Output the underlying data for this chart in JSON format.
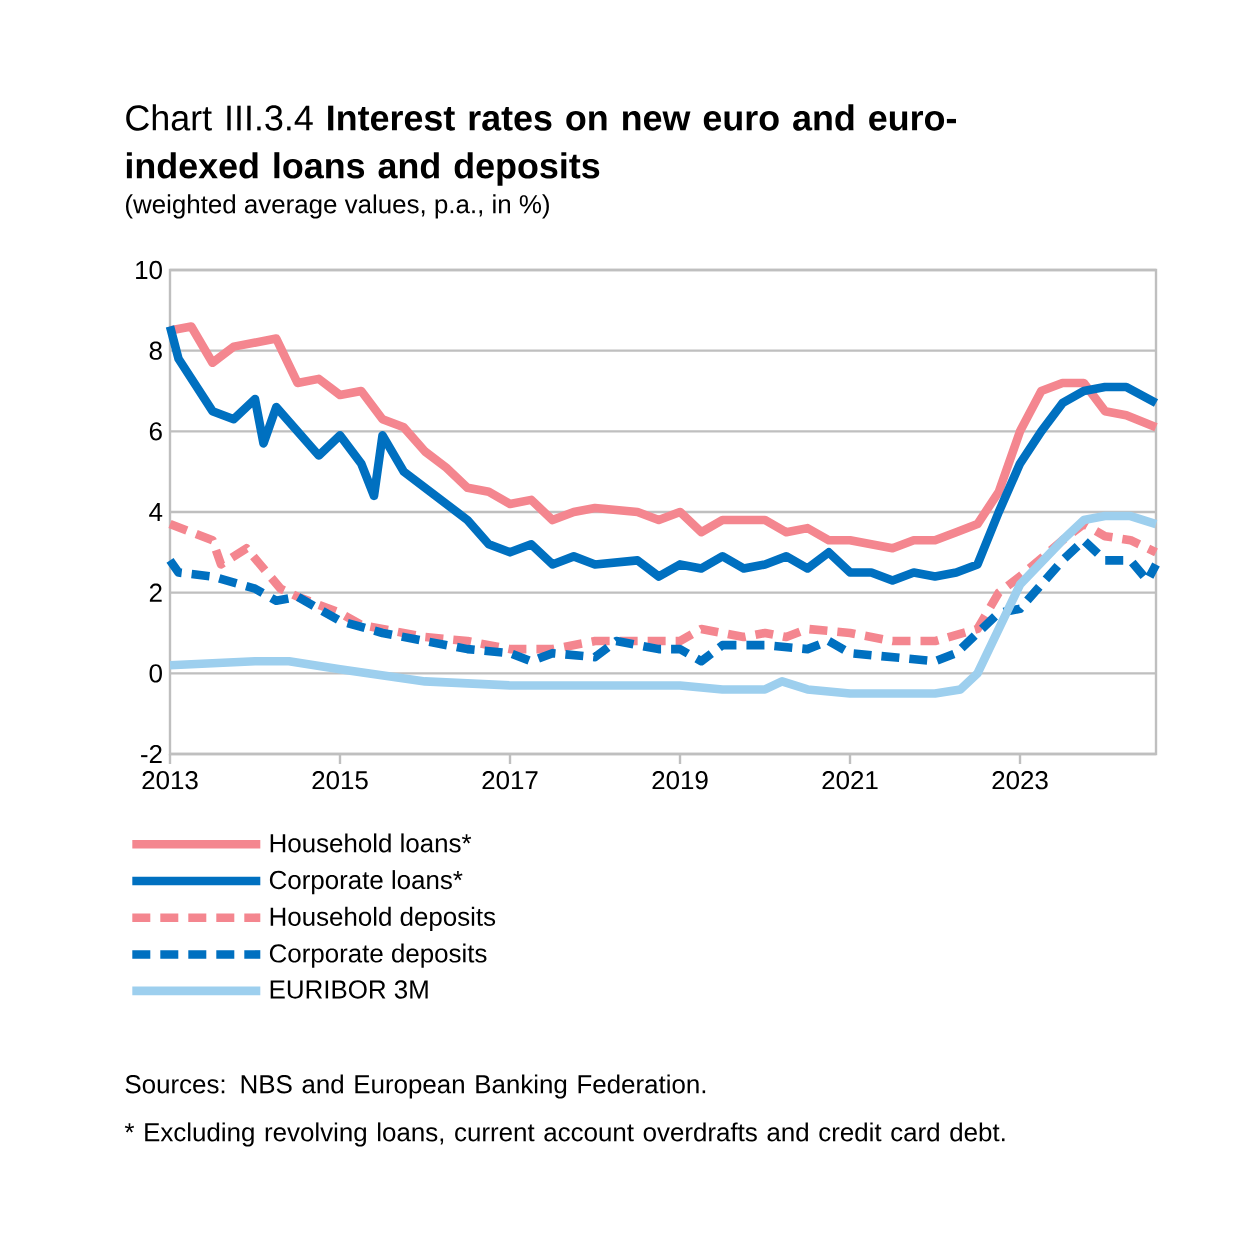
{
  "chart_data": {
    "type": "line",
    "title": "Chart III.3.4 **Interest rates on new euro and euro-indexed loans and deposits**",
    "subtitle": "(weighted average values, p.a., in %)",
    "xlim": [
      2013,
      2024.6
    ],
    "xticks": [
      2013,
      2015,
      2017,
      2019,
      2021,
      2023
    ],
    "ylim": [
      -2,
      10
    ],
    "yticks": [
      -2,
      0,
      2,
      4,
      6,
      8,
      10
    ],
    "grid": "y",
    "legend": "bottom left",
    "series": [
      {
        "name": "Household loans*",
        "color": "#f4868f",
        "line_style": "solid",
        "x": [
          2013,
          2013.25,
          2013.5,
          2013.75,
          2014,
          2014.25,
          2014.5,
          2014.75,
          2015,
          2015.25,
          2015.5,
          2015.75,
          2016,
          2016.25,
          2016.5,
          2016.75,
          2017,
          2017.25,
          2017.5,
          2017.75,
          2018,
          2018.5,
          2018.75,
          2019,
          2019.25,
          2019.5,
          2019.75,
          2020,
          2020.25,
          2020.5,
          2020.75,
          2021,
          2021.25,
          2021.5,
          2021.75,
          2022,
          2022.25,
          2022.5,
          2022.75,
          2023,
          2023.25,
          2023.5,
          2023.75,
          2024,
          2024.25,
          2024.6
        ],
        "values": [
          8.5,
          8.6,
          7.7,
          8.1,
          8.2,
          8.3,
          7.2,
          7.3,
          6.9,
          7.0,
          6.3,
          6.1,
          5.5,
          5.1,
          4.6,
          4.5,
          4.2,
          4.3,
          3.8,
          4.0,
          4.1,
          4.0,
          3.8,
          4.0,
          3.5,
          3.8,
          3.8,
          3.8,
          3.5,
          3.6,
          3.3,
          3.3,
          3.2,
          3.1,
          3.3,
          3.3,
          3.5,
          3.7,
          4.5,
          6.0,
          7.0,
          7.2,
          7.2,
          6.5,
          6.4,
          6.1
        ]
      },
      {
        "name": "Corporate loans*",
        "color": "#0070c0",
        "line_style": "solid",
        "x": [
          2013,
          2013.1,
          2013.5,
          2013.75,
          2014,
          2014.1,
          2014.25,
          2014.5,
          2014.75,
          2015,
          2015.25,
          2015.4,
          2015.5,
          2015.75,
          2016,
          2016.25,
          2016.5,
          2016.75,
          2017,
          2017.25,
          2017.5,
          2017.75,
          2018,
          2018.5,
          2018.75,
          2019,
          2019.25,
          2019.5,
          2019.75,
          2020,
          2020.25,
          2020.5,
          2020.75,
          2021,
          2021.25,
          2021.5,
          2021.75,
          2022,
          2022.25,
          2022.5,
          2022.75,
          2023,
          2023.25,
          2023.5,
          2023.75,
          2024,
          2024.25,
          2024.6
        ],
        "values": [
          8.6,
          7.8,
          6.5,
          6.3,
          6.8,
          5.7,
          6.6,
          6.0,
          5.4,
          5.9,
          5.2,
          4.4,
          5.9,
          5.0,
          4.6,
          4.2,
          3.8,
          3.2,
          3.0,
          3.2,
          2.7,
          2.9,
          2.7,
          2.8,
          2.4,
          2.7,
          2.6,
          2.9,
          2.6,
          2.7,
          2.9,
          2.6,
          3.0,
          2.5,
          2.5,
          2.3,
          2.5,
          2.4,
          2.5,
          2.7,
          4.0,
          5.2,
          6.0,
          6.7,
          7.0,
          7.1,
          7.1,
          6.7
        ]
      },
      {
        "name": "Household deposits",
        "color": "#f4868f",
        "line_style": "dashed",
        "x": [
          2013,
          2013.5,
          2013.6,
          2013.9,
          2014.1,
          2014.3,
          2014.5,
          2015,
          2015.25,
          2015.5,
          2016,
          2016.5,
          2017,
          2017.5,
          2018,
          2018.5,
          2019,
          2019.25,
          2019.75,
          2020,
          2020.25,
          2020.5,
          2021,
          2021.5,
          2022,
          2022.5,
          2022.75,
          2023,
          2023.5,
          2023.75,
          2024,
          2024.3,
          2024.6
        ],
        "values": [
          3.7,
          3.3,
          2.7,
          3.1,
          2.6,
          2.1,
          1.9,
          1.5,
          1.2,
          1.1,
          0.9,
          0.8,
          0.6,
          0.6,
          0.8,
          0.8,
          0.8,
          1.1,
          0.9,
          1.0,
          0.9,
          1.1,
          1.0,
          0.8,
          0.8,
          1.1,
          2.0,
          2.4,
          3.3,
          3.7,
          3.4,
          3.3,
          3.0
        ]
      },
      {
        "name": "Corporate deposits",
        "color": "#0070c0",
        "line_style": "dashed",
        "x": [
          2013,
          2013.1,
          2013.5,
          2014,
          2014.25,
          2014.5,
          2015,
          2015.5,
          2016,
          2016.5,
          2017,
          2017.25,
          2017.5,
          2018,
          2018.25,
          2018.75,
          2019,
          2019.25,
          2019.5,
          2020,
          2020.5,
          2020.75,
          2021,
          2021.5,
          2022,
          2022.25,
          2022.75,
          2023,
          2023.25,
          2023.5,
          2023.75,
          2024,
          2024.3,
          2024.5,
          2024.6
        ],
        "values": [
          2.8,
          2.5,
          2.4,
          2.1,
          1.8,
          1.9,
          1.3,
          1.0,
          0.8,
          0.6,
          0.5,
          0.3,
          0.5,
          0.4,
          0.8,
          0.6,
          0.6,
          0.3,
          0.7,
          0.7,
          0.6,
          0.8,
          0.5,
          0.4,
          0.3,
          0.5,
          1.5,
          1.6,
          2.2,
          2.8,
          3.3,
          2.8,
          2.8,
          2.3,
          2.7
        ]
      },
      {
        "name": "EURIBOR 3M",
        "color": "#9dcfee",
        "line_style": "solid",
        "x": [
          2013,
          2014,
          2014.4,
          2015,
          2016,
          2017,
          2018,
          2019,
          2019.5,
          2020,
          2020.2,
          2020.5,
          2021,
          2022,
          2022.3,
          2022.5,
          2022.75,
          2023,
          2023.5,
          2023.75,
          2024,
          2024.3,
          2024.6
        ],
        "values": [
          0.2,
          0.3,
          0.3,
          0.1,
          -0.2,
          -0.3,
          -0.3,
          -0.3,
          -0.4,
          -0.4,
          -0.2,
          -0.4,
          -0.5,
          -0.5,
          -0.4,
          0.0,
          1.1,
          2.2,
          3.3,
          3.8,
          3.9,
          3.9,
          3.7
        ]
      }
    ],
    "annotations": [
      "Sources: NBS and European Banking Federation.",
      "* Excluding revolving loans, current account overdrafts and credit card debt."
    ]
  }
}
